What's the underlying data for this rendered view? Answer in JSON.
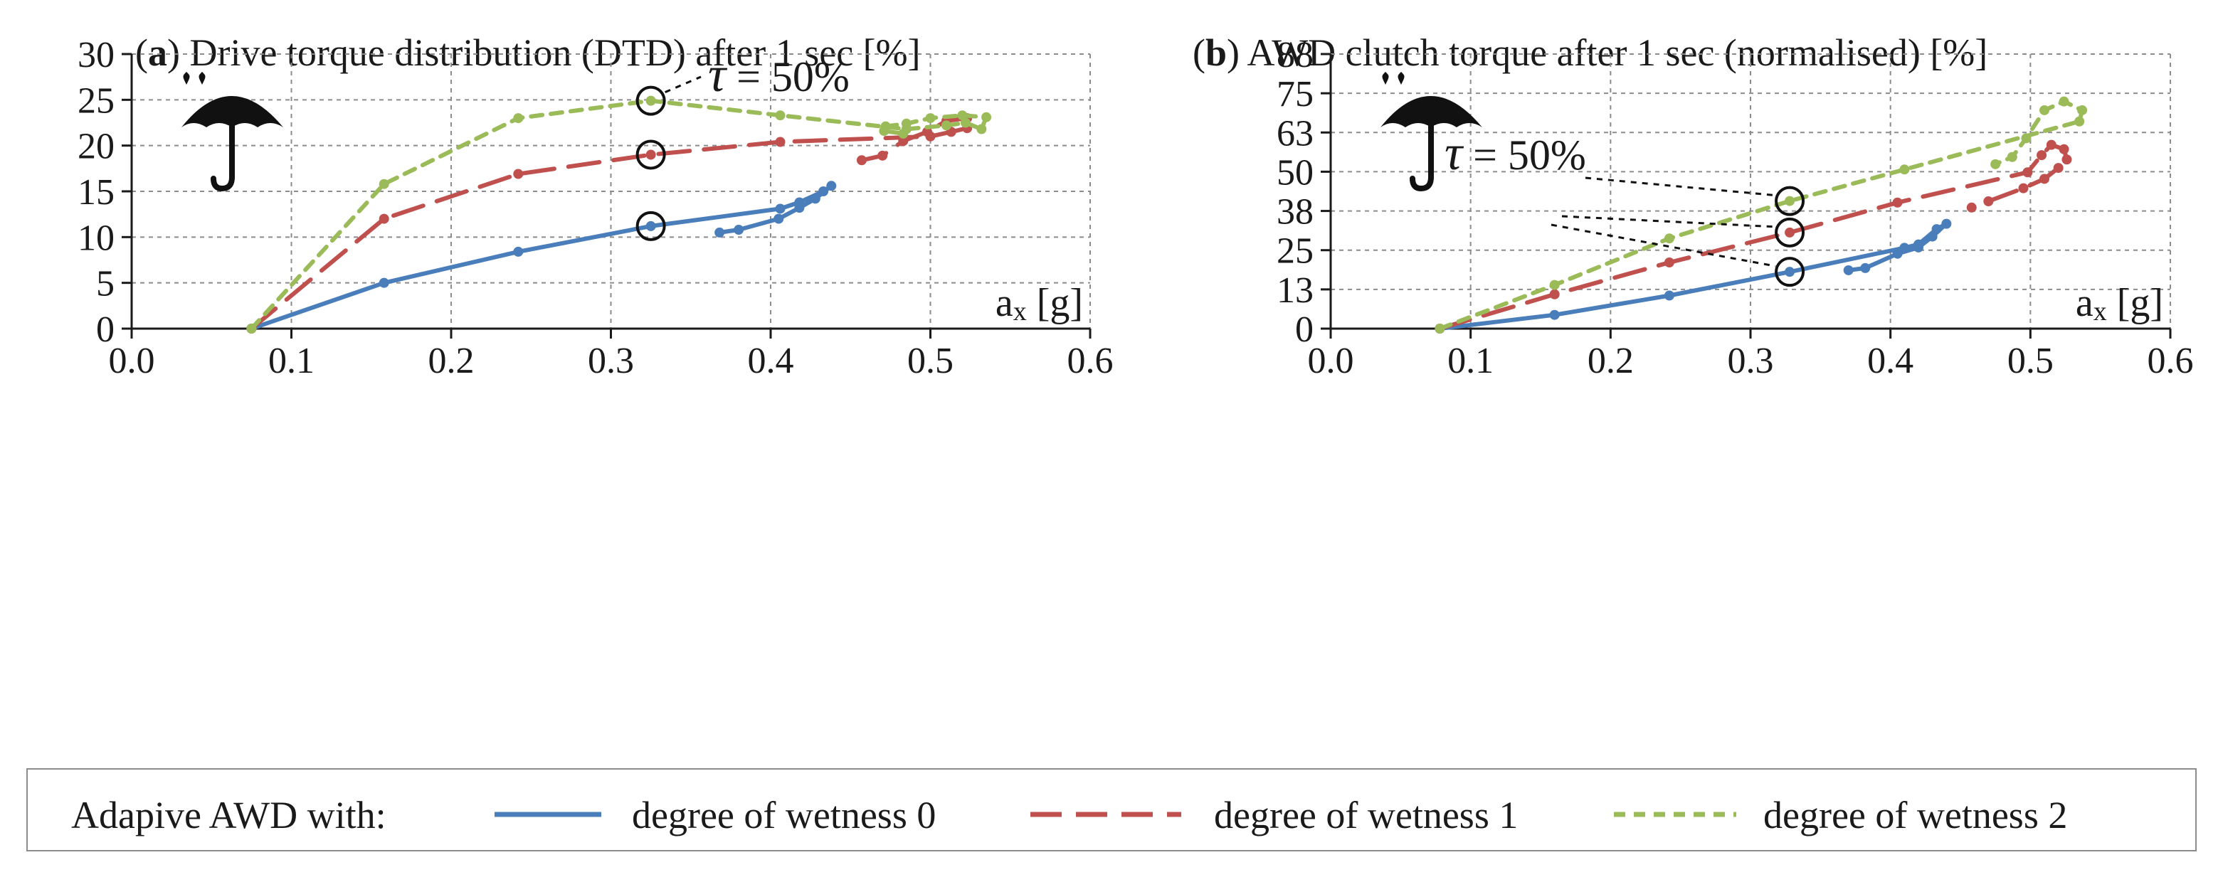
{
  "colors": {
    "wet0": "#4a7ebb",
    "wet1": "#c0504d",
    "wet2": "#9bbb59",
    "grid": "#8c8c8c",
    "axis": "#1a1a1a"
  },
  "icons": [
    "umbrella-rain-icon"
  ],
  "chart_data": [
    {
      "type": "line",
      "panel_letter": "a",
      "title_prefix": "(",
      "title": ") Drive torque distribution (DTD) after 1 sec [%]",
      "xlabel_main": "a",
      "xlabel_sub": "x",
      "xlabel_unit": " [g]",
      "ylabel": "",
      "xlim": [
        0.0,
        0.6
      ],
      "ylim": [
        0,
        30
      ],
      "xticks": [
        "0.0",
        "0.1",
        "0.2",
        "0.3",
        "0.4",
        "0.5",
        "0.6"
      ],
      "xtick_values": [
        0.0,
        0.1,
        0.2,
        0.3,
        0.4,
        0.5,
        0.6
      ],
      "yticks": [
        "0",
        "5",
        "10",
        "15",
        "20",
        "25",
        "30"
      ],
      "ytick_values": [
        0,
        5,
        10,
        15,
        20,
        25,
        30
      ],
      "grid": true,
      "annotation": {
        "symbol": "τ",
        "text": " = 50%",
        "marked_points": [
          [
            0.325,
            11.2
          ],
          [
            0.325,
            19.0
          ],
          [
            0.325,
            24.9
          ]
        ]
      },
      "series": [
        {
          "name": "degree of wetness 0",
          "x": [
            0.075,
            0.158,
            0.242,
            0.325,
            0.406,
            0.418,
            0.433,
            0.438,
            0.428,
            0.418,
            0.405,
            0.38,
            0.368
          ],
          "y": [
            0,
            5.0,
            8.4,
            11.2,
            13.1,
            13.8,
            15.0,
            15.6,
            14.2,
            13.2,
            12.0,
            10.8,
            10.5
          ]
        },
        {
          "name": "degree of wetness 1",
          "x": [
            0.075,
            0.158,
            0.242,
            0.325,
            0.406,
            0.5,
            0.513,
            0.523,
            0.523,
            0.51,
            0.498,
            0.483,
            0.47,
            0.457
          ],
          "y": [
            0,
            12.0,
            16.9,
            19.0,
            20.4,
            21.0,
            21.5,
            21.9,
            23.0,
            22.7,
            21.5,
            20.5,
            18.9,
            18.4
          ]
        },
        {
          "name": "degree of wetness 2",
          "x": [
            0.075,
            0.158,
            0.242,
            0.325,
            0.406,
            0.485,
            0.51,
            0.522,
            0.532,
            0.535,
            0.52,
            0.5,
            0.485,
            0.472,
            0.471,
            0.483
          ],
          "y": [
            0,
            15.8,
            23.0,
            24.9,
            23.3,
            21.8,
            22.2,
            22.5,
            21.8,
            23.1,
            23.3,
            23.0,
            22.4,
            22.1,
            21.6,
            21.3
          ]
        }
      ]
    },
    {
      "type": "line",
      "panel_letter": "b",
      "title_prefix": "(",
      "title": ") AWD clutch torque after 1 sec (normalised) [%]",
      "xlabel_main": "a",
      "xlabel_sub": "x",
      "xlabel_unit": " [g]",
      "ylabel": "",
      "xlim": [
        0.0,
        0.6
      ],
      "ylim": [
        0,
        88
      ],
      "xticks": [
        "0.0",
        "0.1",
        "0.2",
        "0.3",
        "0.4",
        "0.5",
        "0.6"
      ],
      "xtick_values": [
        0.0,
        0.1,
        0.2,
        0.3,
        0.4,
        0.5,
        0.6
      ],
      "yticks": [
        "0",
        "13",
        "25",
        "38",
        "50",
        "63",
        "75",
        "88"
      ],
      "ytick_values": [
        0,
        12.57,
        25.14,
        37.71,
        50.29,
        62.86,
        75.43,
        88
      ],
      "grid": true,
      "annotation": {
        "symbol": "τ",
        "text": " = 50%",
        "marked_points": [
          [
            0.328,
            18.2
          ],
          [
            0.328,
            30.8
          ],
          [
            0.328,
            40.9
          ]
        ]
      },
      "series": [
        {
          "name": "degree of wetness 0",
          "x": [
            0.078,
            0.16,
            0.242,
            0.328,
            0.41,
            0.42,
            0.433,
            0.44,
            0.43,
            0.42,
            0.405,
            0.382,
            0.37
          ],
          "y": [
            0,
            4.4,
            10.6,
            18.2,
            25.9,
            27.0,
            31.9,
            33.6,
            29.5,
            26.0,
            24.0,
            19.4,
            18.7
          ]
        },
        {
          "name": "degree of wetness 1",
          "x": [
            0.078,
            0.16,
            0.242,
            0.328,
            0.405,
            0.498,
            0.508,
            0.515,
            0.524,
            0.526,
            0.52,
            0.51,
            0.495,
            0.47,
            0.458
          ],
          "y": [
            0,
            11.0,
            21.2,
            30.8,
            40.4,
            50.1,
            55.6,
            58.9,
            57.5,
            54.2,
            51.5,
            48.0,
            45.0,
            40.8,
            38.8
          ]
        },
        {
          "name": "degree of wetness 2",
          "x": [
            0.078,
            0.16,
            0.242,
            0.328,
            0.41,
            0.535,
            0.537,
            0.524,
            0.51,
            0.497,
            0.487,
            0.475
          ],
          "y": [
            0,
            14.0,
            28.9,
            40.9,
            51.0,
            66.4,
            70.0,
            72.8,
            70.0,
            61.0,
            55.0,
            52.7
          ]
        }
      ]
    }
  ],
  "legend": {
    "prefix": "Adapive AWD with:",
    "entries": [
      "degree of wetness 0",
      "degree of wetness 1",
      "degree of wetness 2"
    ]
  }
}
